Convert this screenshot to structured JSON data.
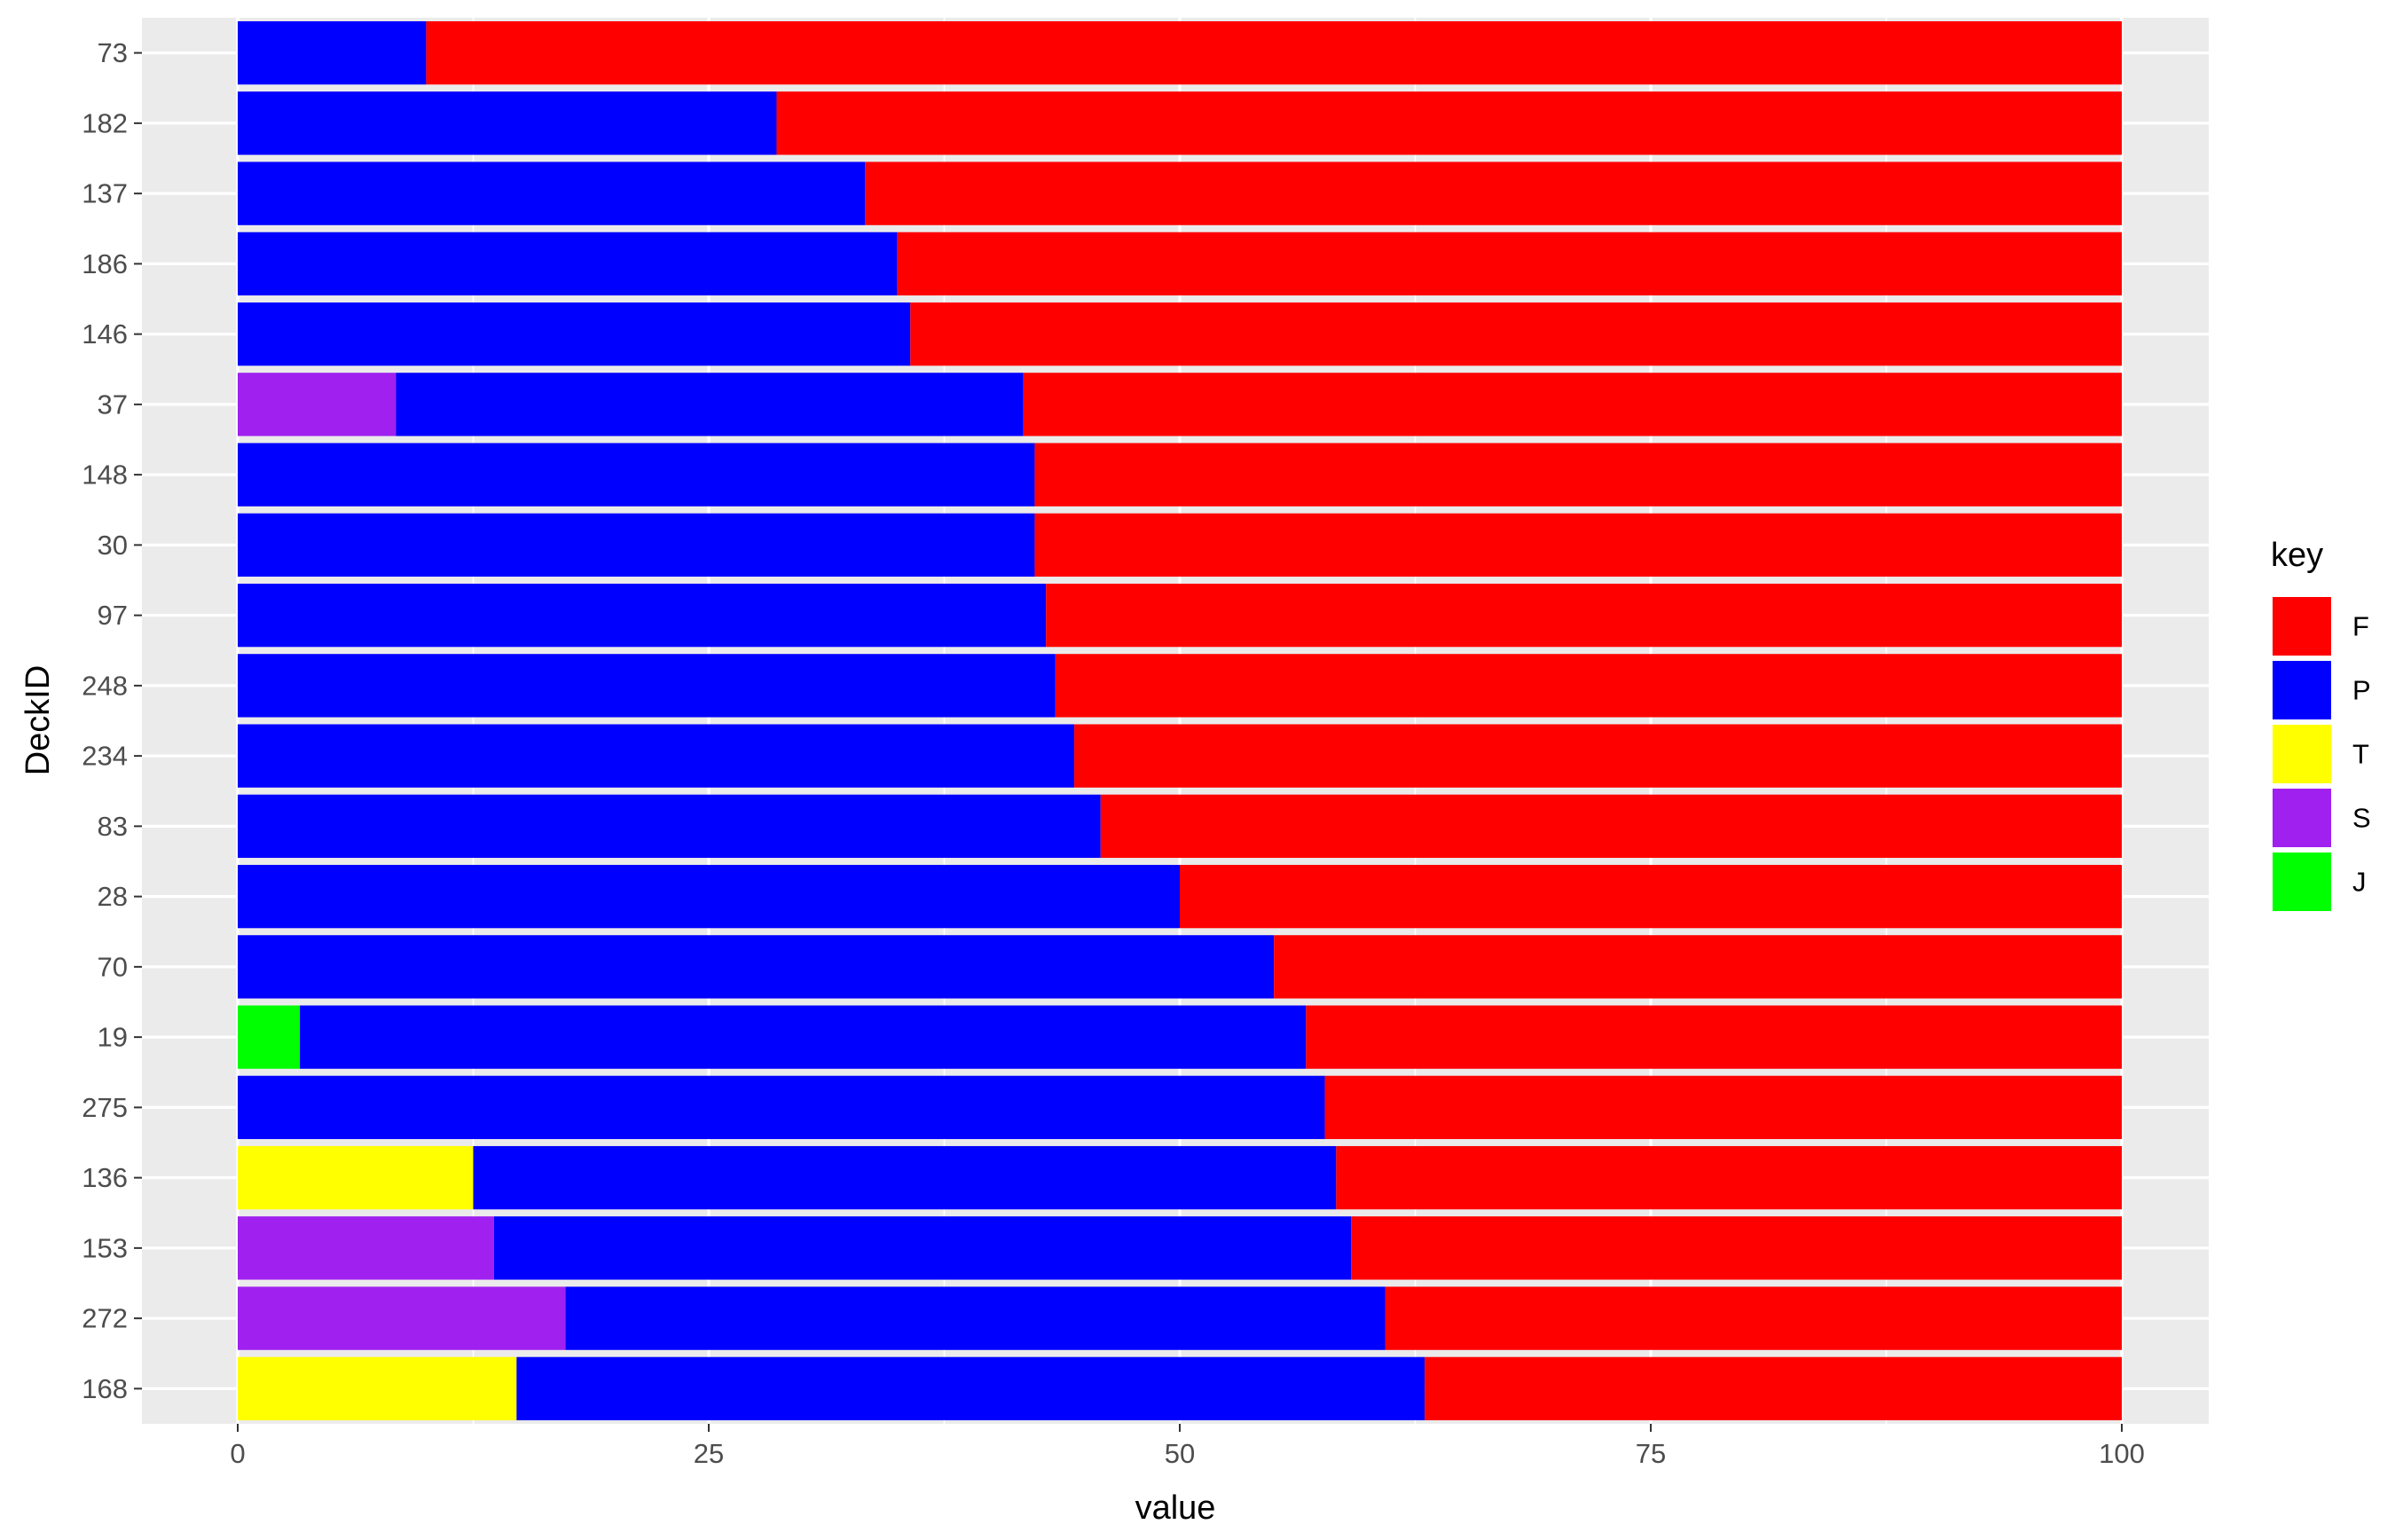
{
  "chart_data": {
    "type": "bar",
    "orientation": "horizontal",
    "stacked": true,
    "xlabel": "value",
    "ylabel": "DeckID",
    "xlim": [
      0,
      100
    ],
    "x_ticks": [
      0,
      25,
      50,
      75,
      100
    ],
    "grid": true,
    "legend_position": "right",
    "legend_title": "key",
    "categories": [
      "73",
      "182",
      "137",
      "186",
      "146",
      "37",
      "148",
      "30",
      "97",
      "248",
      "234",
      "83",
      "28",
      "70",
      "19",
      "275",
      "136",
      "153",
      "272",
      "168"
    ],
    "stack_order": [
      "J",
      "S",
      "T",
      "P",
      "F"
    ],
    "series": [
      {
        "name": "F",
        "color": "#ff0000",
        "values": [
          90.0,
          71.4,
          66.7,
          65.0,
          64.3,
          58.3,
          57.7,
          57.7,
          57.1,
          56.6,
          55.6,
          54.2,
          50.0,
          45.0,
          43.3,
          42.3,
          41.7,
          40.9,
          39.1,
          37.0
        ]
      },
      {
        "name": "P",
        "color": "#0000ff",
        "values": [
          10.0,
          28.6,
          33.3,
          35.0,
          35.7,
          33.3,
          42.3,
          42.3,
          42.9,
          43.4,
          44.4,
          45.8,
          50.0,
          55.0,
          53.4,
          57.7,
          45.8,
          45.5,
          43.5,
          48.2
        ]
      },
      {
        "name": "T",
        "color": "#ffff00",
        "values": [
          0,
          0,
          0,
          0,
          0,
          0,
          0,
          0,
          0,
          0,
          0,
          0,
          0,
          0,
          0,
          0,
          12.5,
          0,
          0,
          14.8
        ]
      },
      {
        "name": "S",
        "color": "#a020f0",
        "values": [
          0,
          0,
          0,
          0,
          0,
          8.4,
          0,
          0,
          0,
          0,
          0,
          0,
          0,
          0,
          0,
          0,
          0,
          13.6,
          17.4,
          0
        ]
      },
      {
        "name": "J",
        "color": "#00ff00",
        "values": [
          0,
          0,
          0,
          0,
          0,
          0,
          0,
          0,
          0,
          0,
          0,
          0,
          0,
          0,
          3.3,
          0,
          0,
          0,
          0,
          0
        ]
      }
    ]
  }
}
